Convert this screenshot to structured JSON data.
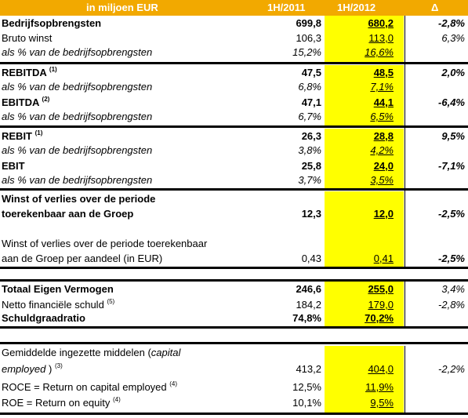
{
  "header": {
    "title": "in miljoen EUR",
    "col1": "1H/2011",
    "col2": "1H/2012",
    "col3": "Δ"
  },
  "rows": [
    {
      "label": "Bedrijfsopbrengsten",
      "sup": "",
      "v1": "699,8",
      "v2": "680,2",
      "v3": "-2,8%"
    },
    {
      "label": "Bruto winst",
      "sup": "",
      "v1": "106,3",
      "v2": "113,0",
      "v3": "6,3%"
    },
    {
      "label": "als % van de bedrijfsopbrengsten",
      "sup": "",
      "v1": "15,2%",
      "v2": "16,6%",
      "v3": ""
    },
    {
      "label": "REBITDA",
      "sup": "(1)",
      "v1": "47,5",
      "v2": "48,5",
      "v3": "2,0%"
    },
    {
      "label": "als % van de bedrijfsopbrengsten",
      "sup": "",
      "v1": "6,8%",
      "v2": "7,1%",
      "v3": ""
    },
    {
      "label": "EBITDA",
      "sup": "(2)",
      "v1": "47,1",
      "v2": "44,1",
      "v3": "-6,4%"
    },
    {
      "label": "als % van de bedrijfsopbrengsten",
      "sup": "",
      "v1": "6,7%",
      "v2": "6,5%",
      "v3": ""
    },
    {
      "label": "REBIT",
      "sup": "(1)",
      "v1": "26,3",
      "v2": "28,8",
      "v3": "9,5%"
    },
    {
      "label": "als % van de bedrijfsopbrengsten",
      "sup": "",
      "v1": "3,8%",
      "v2": "4,2%",
      "v3": ""
    },
    {
      "label": "EBIT",
      "sup": "",
      "v1": "25,8",
      "v2": "24,0",
      "v3": "-7,1%"
    },
    {
      "label": "als % van de bedrijfsopbrengsten",
      "sup": "",
      "v1": "3,7%",
      "v2": "3,5%",
      "v3": ""
    },
    {
      "label": "Winst of verlies over de periode",
      "sup": "",
      "v1": "",
      "v2": "",
      "v3": ""
    },
    {
      "label": "toerekenbaar aan de Groep",
      "sup": "",
      "v1": "12,3",
      "v2": "12,0",
      "v3": "-2,5%"
    },
    {
      "label": "Winst of verlies over de periode toerekenbaar",
      "sup": "",
      "v1": "",
      "v2": "",
      "v3": ""
    },
    {
      "label": "aan de Groep per aandeel (in EUR)",
      "sup": "",
      "v1": "0,43",
      "v2": "0,41",
      "v3": "-2,5%"
    },
    {
      "label": "Totaal Eigen Vermogen",
      "sup": "",
      "v1": "246,6",
      "v2": "255,0",
      "v3": "3,4%"
    },
    {
      "label": "Netto financiële schuld",
      "sup": "(5)",
      "v1": "184,2",
      "v2": "179,0",
      "v3": "-2,8%"
    },
    {
      "label": "Schuldgraadratio",
      "sup": "",
      "v1": "74,8%",
      "v2": "70,2%",
      "v3": ""
    },
    {
      "label": "Gemiddelde ingezette middelen (",
      "italic_part": "capital",
      "sup": "",
      "v1": "",
      "v2": "",
      "v3": ""
    },
    {
      "label": "employed",
      "sup": "(3)",
      "label_suffix": ")",
      "v1": "413,2",
      "v2": "404,0",
      "v3": "-2,2%"
    },
    {
      "label": "ROCE = Return on capital employed",
      "sup": "(4)",
      "v1": "12,5%",
      "v2": "11,9%",
      "v3": ""
    },
    {
      "label": "ROE = Return on equity",
      "sup": "(4)",
      "v1": "10,1%",
      "v2": "9,5%",
      "v3": ""
    }
  ]
}
